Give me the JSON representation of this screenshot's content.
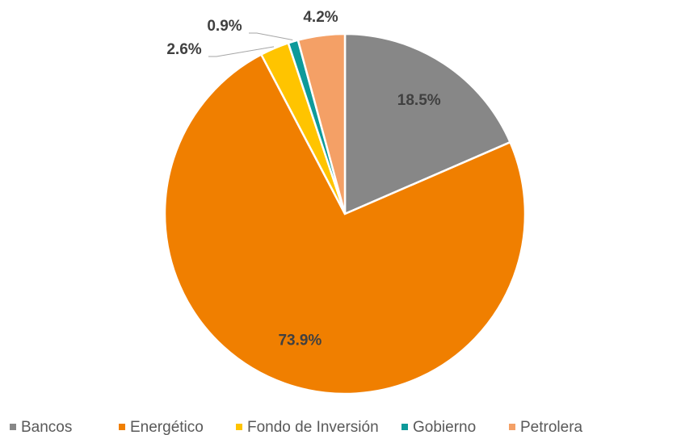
{
  "chart_data": {
    "type": "pie",
    "categories": [
      "Bancos",
      "Energético",
      "Fondo de Inversión",
      "Gobierno",
      "Petrolera"
    ],
    "values": [
      18.5,
      73.9,
      2.6,
      0.9,
      4.2
    ],
    "value_labels": [
      "18.5%",
      "73.9%",
      "2.6%",
      "0.9%",
      "4.2%"
    ],
    "colors": [
      "#878787",
      "#f07f00",
      "#ffc400",
      "#0d9a9a",
      "#f4a066"
    ],
    "legend": "bottom"
  }
}
